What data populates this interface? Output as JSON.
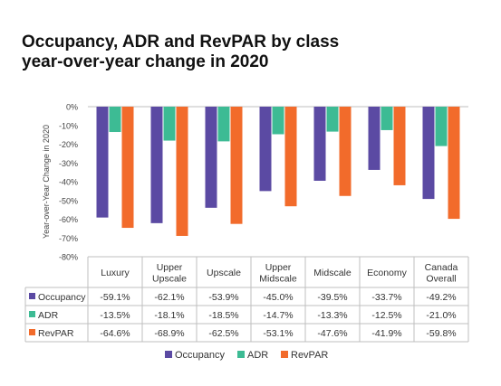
{
  "title": {
    "line1": "Occupancy, ADR and RevPAR by class",
    "line2": "year-over-year change in 2020"
  },
  "chart_data": {
    "type": "bar",
    "title": "Occupancy, ADR and RevPAR by class year-over-year change in 2020",
    "ylabel": "Year-over-Year Change in 2020",
    "ylim": [
      -80,
      0
    ],
    "yticks": [
      0,
      -10,
      -20,
      -30,
      -40,
      -50,
      -60,
      -70,
      -80
    ],
    "ytick_labels": [
      "0%",
      "-10%",
      "-20%",
      "-30%",
      "-40%",
      "-50%",
      "-60%",
      "-70%",
      "-80%"
    ],
    "categories": [
      [
        "Luxury"
      ],
      [
        "Upper",
        "Upscale"
      ],
      [
        "Upscale"
      ],
      [
        "Upper",
        "Midscale"
      ],
      [
        "Midscale"
      ],
      [
        "Economy"
      ],
      [
        "Canada",
        "Overall"
      ]
    ],
    "series": [
      {
        "name": "Occupancy",
        "color": "#5b4aa3",
        "values": [
          -59.1,
          -62.1,
          -53.9,
          -45.0,
          -39.5,
          -33.7,
          -49.2
        ],
        "labels": [
          "-59.1%",
          "-62.1%",
          "-53.9%",
          "-45.0%",
          "-39.5%",
          "-33.7%",
          "-49.2%"
        ]
      },
      {
        "name": "ADR",
        "color": "#3dbb94",
        "values": [
          -13.5,
          -18.1,
          -18.5,
          -14.7,
          -13.3,
          -12.5,
          -21.0
        ],
        "labels": [
          "-13.5%",
          "-18.1%",
          "-18.5%",
          "-14.7%",
          "-13.3%",
          "-12.5%",
          "-21.0%"
        ]
      },
      {
        "name": "RevPAR",
        "color": "#f26b2b",
        "values": [
          -64.6,
          -68.9,
          -62.5,
          -53.1,
          -47.6,
          -41.9,
          -59.8
        ],
        "labels": [
          "-64.6%",
          "-68.9%",
          "-62.5%",
          "-53.1%",
          "-47.6%",
          "-41.9%",
          "-59.8%"
        ]
      }
    ],
    "data_table": true,
    "legend_position": "bottom",
    "grid": false
  }
}
